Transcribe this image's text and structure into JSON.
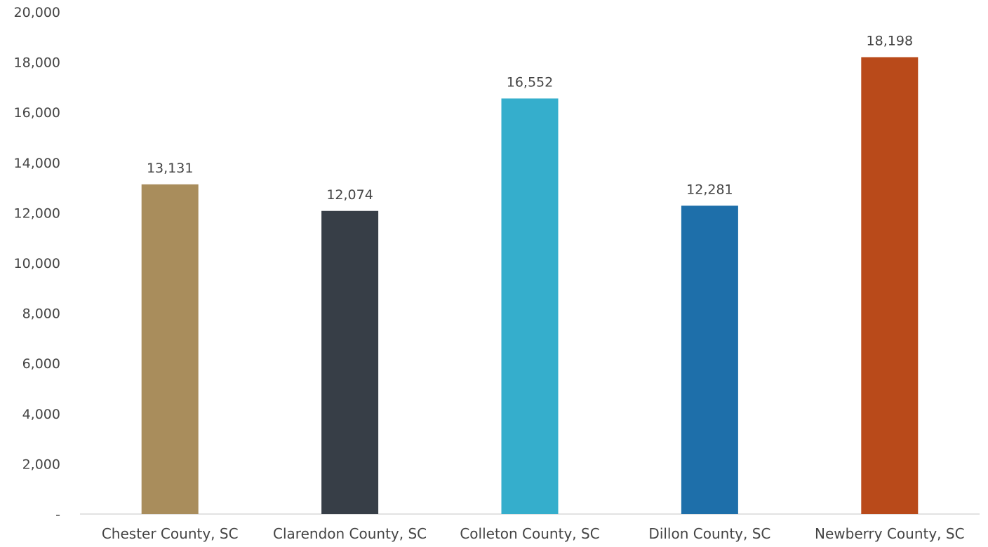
{
  "chart_data": {
    "type": "bar",
    "categories": [
      "Chester County, SC",
      "Clarendon County, SC",
      "Colleton County, SC",
      "Dillon County, SC",
      "Newberry County, SC"
    ],
    "values": [
      13131,
      12074,
      16552,
      12281,
      18198
    ],
    "data_labels": [
      "13,131",
      "12,074",
      "16,552",
      "12,281",
      "18,198"
    ],
    "colors": [
      "#A98D5C",
      "#373E47",
      "#35AECC",
      "#1E6FAA",
      "#B94A1A"
    ],
    "ylim": [
      0,
      20000
    ],
    "y_ticks": [
      0,
      2000,
      4000,
      6000,
      8000,
      10000,
      12000,
      14000,
      16000,
      18000,
      20000
    ],
    "y_tick_labels": [
      "-",
      "2,000",
      "4,000",
      "6,000",
      "8,000",
      "10,000",
      "12,000",
      "14,000",
      "16,000",
      "18,000",
      "20,000"
    ],
    "grid": false,
    "legend": "none",
    "title": "",
    "xlabel": "",
    "ylabel": ""
  }
}
